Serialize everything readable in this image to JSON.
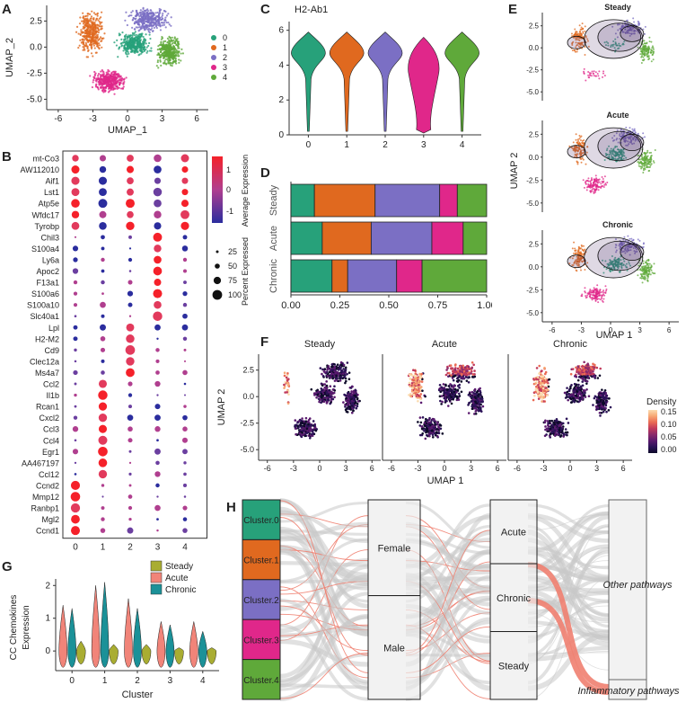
{
  "panels": {
    "A": "A",
    "B": "B",
    "C": "C",
    "D": "D",
    "E": "E",
    "F": "F",
    "G": "G",
    "H": "H"
  },
  "colors": {
    "c0": "#27a17a",
    "c1": "#e0691f",
    "c2": "#7b6fc4",
    "c3": "#e0278a",
    "c4": "#5fa93a",
    "steady": "#a9ad32",
    "acute": "#f18479",
    "chronic": "#1b9198"
  },
  "chart_data": [
    {
      "id": "A",
      "type": "scatter",
      "title": "",
      "xlabel": "UMAP_1",
      "ylabel": "UMAP_2",
      "xticks": [
        "-6",
        "-3",
        "0",
        "3",
        "6"
      ],
      "yticks": [
        "2.5",
        "0.0",
        "-2.5",
        "-5.0"
      ],
      "legend": [
        "0",
        "1",
        "2",
        "3",
        "4"
      ]
    },
    {
      "id": "B",
      "type": "dotplot",
      "genes": [
        "mt-Co3",
        "AW112010",
        "Aif1",
        "Lst1",
        "Atp5e",
        "Wfdc17",
        "Tyrobp",
        "Chil3",
        "S100a4",
        "Ly6a",
        "Apoc2",
        "F13a1",
        "S100a6",
        "S100a10",
        "Slc40a1",
        "Lpl",
        "H2-M2",
        "Cd9",
        "Clec12a",
        "Ms4a7",
        "Ccl2",
        "Il1b",
        "Rcan1",
        "Cxcl2",
        "Ccl3",
        "Ccl4",
        "Egr1",
        "AA467197",
        "Ccl12",
        "Ccnd2",
        "Mmp12",
        "Ranbp1",
        "Mgl2",
        "Ccnd1"
      ],
      "clusters": [
        "0",
        "1",
        "2",
        "3",
        "4"
      ],
      "color_legend_title": "Average Expression",
      "color_ticks": [
        "1",
        "0",
        "-1"
      ],
      "size_legend_title": "Percent Expressed",
      "size_ticks": [
        "25",
        "50",
        "75",
        "100"
      ]
    },
    {
      "id": "C",
      "type": "violin",
      "title": "H2-Ab1",
      "categories": [
        "0",
        "1",
        "2",
        "3",
        "4"
      ],
      "yticks": [
        "0",
        "2",
        "4",
        "6"
      ],
      "ylim": [
        0,
        6.5
      ]
    },
    {
      "id": "D",
      "type": "bar",
      "stacked": true,
      "horizontal": true,
      "categories": [
        "Steady",
        "Acute",
        "Chronic"
      ],
      "series": [
        {
          "name": "0",
          "values": [
            0.12,
            0.16,
            0.21
          ]
        },
        {
          "name": "1",
          "values": [
            0.31,
            0.25,
            0.08
          ]
        },
        {
          "name": "2",
          "values": [
            0.33,
            0.31,
            0.25
          ]
        },
        {
          "name": "3",
          "values": [
            0.09,
            0.16,
            0.13
          ]
        },
        {
          "name": "4",
          "values": [
            0.15,
            0.12,
            0.33
          ]
        }
      ],
      "xticks": [
        "0.00",
        "0.25",
        "0.50",
        "0.75",
        "1.00"
      ],
      "xlim": [
        0,
        1
      ]
    },
    {
      "id": "E",
      "type": "scatter",
      "facets": [
        "Steady",
        "Acute",
        "Chronic"
      ],
      "xlabel": "UMAP 1",
      "ylabel": "UMAP 2",
      "xticks": [
        "-6",
        "-3",
        "0",
        "3",
        "6"
      ],
      "yticks": [
        "2.5",
        "0.0",
        "-2.5",
        "-5.0"
      ]
    },
    {
      "id": "F",
      "type": "heatmap",
      "facets": [
        "Steady",
        "Acute",
        "Chronic"
      ],
      "xlabel": "UMAP 1",
      "ylabel": "UMAP 2",
      "xticks": [
        "-6",
        "-3",
        "0",
        "3",
        "6"
      ],
      "yticks": [
        "2.5",
        "0.0",
        "-2.5",
        "-5.0"
      ],
      "legend_title": "Density",
      "legend_ticks": [
        "0.15",
        "0.10",
        "0.05",
        "0.00"
      ]
    },
    {
      "id": "G",
      "type": "violin",
      "xlabel": "Cluster",
      "ylabel": "CC Chemokines\nExpression",
      "ylabel_lines": [
        "CC Chemokines",
        "Expression"
      ],
      "categories": [
        "0",
        "1",
        "2",
        "3",
        "4"
      ],
      "yticks": [
        "2",
        "1",
        "0"
      ],
      "legend": [
        "Steady",
        "Acute",
        "Chronic"
      ]
    },
    {
      "id": "H",
      "type": "sankey",
      "axis1": [
        "Cluster.0",
        "Cluster.1",
        "Cluster.2",
        "Cluster.3",
        "Cluster.4"
      ],
      "axis2": [
        "Female",
        "Male"
      ],
      "axis3": [
        "Acute",
        "Chronic",
        "Steady"
      ],
      "axis4": [
        "Other pathways",
        "Inflammatory pathways"
      ]
    }
  ]
}
